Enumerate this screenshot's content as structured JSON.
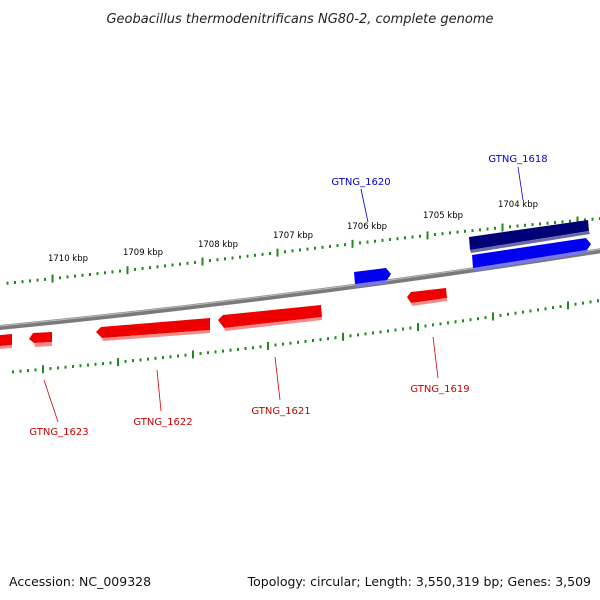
{
  "title": "Geobacillus thermodenitrificans NG80-2, complete genome",
  "footer": {
    "accession": "Accession: NC_009328",
    "summary": "Topology: circular; Length: 3,550,319 bp; Genes: 3,509"
  },
  "colors": {
    "forward_strand": "#0000ee",
    "forward_highlight": "#000077",
    "reverse_strand": "#ee0000",
    "backbone": "#7a7a7a",
    "ticks": "#1f8a1f",
    "label_forward": "#0000cc",
    "label_reverse": "#cc0000"
  },
  "chart_data": {
    "type": "genome-map",
    "scale_labels": [
      "1704 kbp",
      "1705 kbp",
      "1706 kbp",
      "1707 kbp",
      "1708 kbp",
      "1709 kbp",
      "1710 kbp"
    ],
    "genes": [
      {
        "name": "GTNG_1618",
        "strand": "forward"
      },
      {
        "name": "GTNG_1620",
        "strand": "forward"
      },
      {
        "name": "GTNG_1619",
        "strand": "reverse"
      },
      {
        "name": "GTNG_1621",
        "strand": "reverse"
      },
      {
        "name": "GTNG_1622",
        "strand": "reverse"
      },
      {
        "name": "GTNG_1623",
        "strand": "reverse"
      }
    ]
  }
}
